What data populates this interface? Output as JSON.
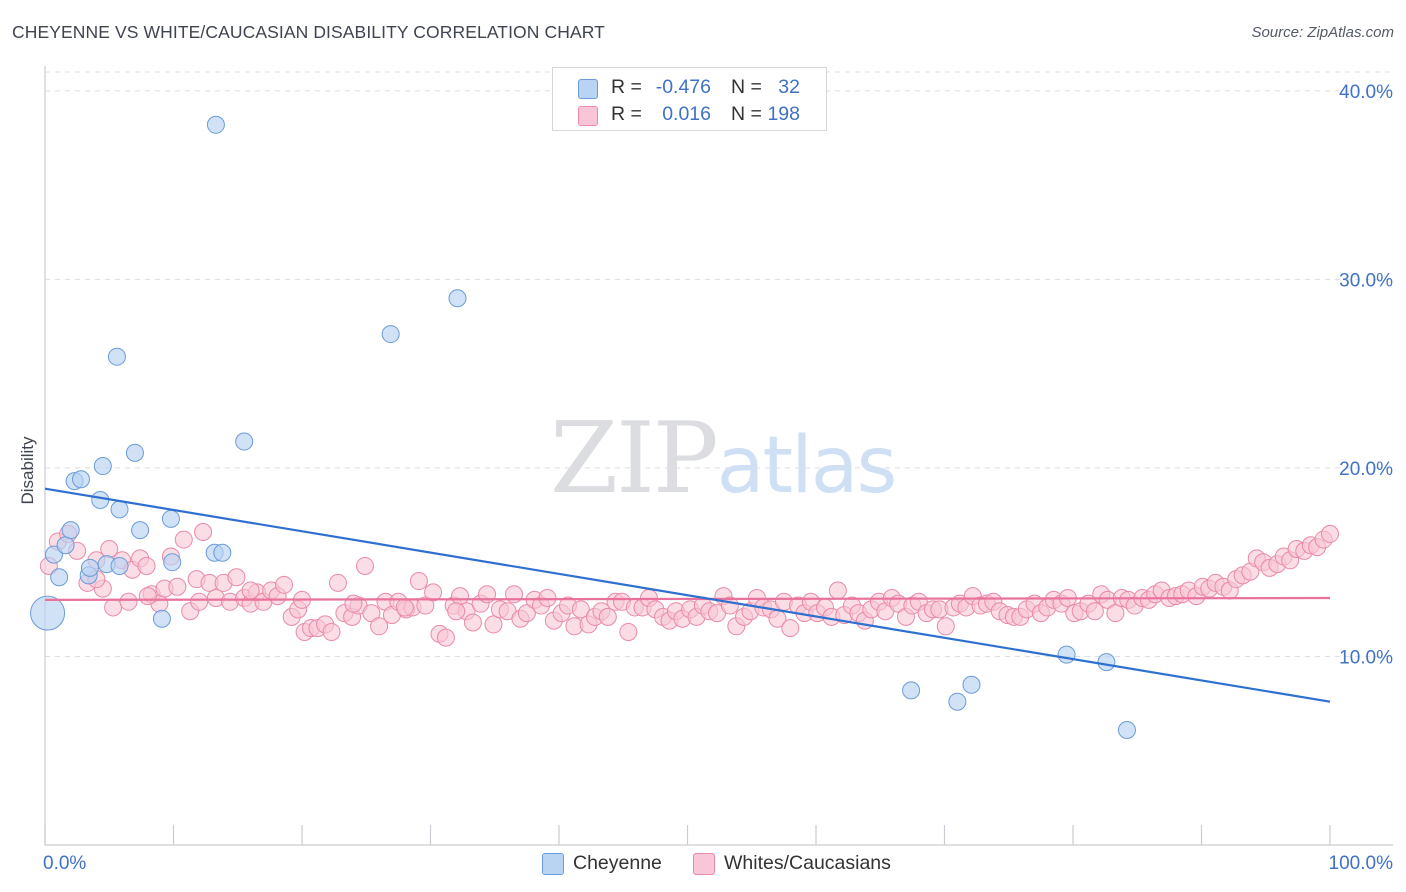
{
  "title": "CHEYENNE VS WHITE/CAUCASIAN DISABILITY CORRELATION CHART",
  "source": "Source: ZipAtlas.com",
  "watermark": {
    "zip": "ZIP",
    "atlas": "atlas"
  },
  "legend": {
    "series1": {
      "r_label": "R =",
      "r_value": "-0.476",
      "n_label": "N =",
      "n_value": "32"
    },
    "series2": {
      "r_label": "R =",
      "r_value": "0.016",
      "n_label": "N =",
      "n_value": "198"
    }
  },
  "bottom_legend": {
    "series1": "Cheyenne",
    "series2": "Whites/Caucasians"
  },
  "colors": {
    "blue_fill": "#b9d3f2",
    "blue_stroke": "#6b9bd8",
    "blue_line": "#2f6fd0",
    "pink_fill": "#f8c6d6",
    "pink_stroke": "#e98aa8",
    "pink_line": "#e8729b",
    "grid": "#dcdee3",
    "axis_text": "#3f72c6"
  },
  "chart_data": {
    "type": "scatter",
    "title": "CHEYENNE VS WHITE/CAUCASIAN DISABILITY CORRELATION CHART",
    "xlabel": "",
    "ylabel": "Disability",
    "xlim": [
      0,
      100
    ],
    "ylim": [
      0,
      41
    ],
    "x_tick_labels": [
      "0.0%",
      "100.0%"
    ],
    "y_ticks": [
      10,
      20,
      30,
      40
    ],
    "y_tick_labels": [
      "10.0%",
      "20.0%",
      "30.0%",
      "40.0%"
    ],
    "grid": true,
    "series": [
      {
        "name": "Cheyenne",
        "color": "#6b9bd8",
        "r": -0.476,
        "n": 32,
        "trend": {
          "x": [
            0,
            100
          ],
          "y": [
            18.9,
            7.6
          ]
        },
        "points": [
          [
            0.2,
            12.3
          ],
          [
            0.7,
            15.4
          ],
          [
            1.1,
            14.2
          ],
          [
            1.6,
            15.9
          ],
          [
            2.0,
            16.7
          ],
          [
            2.3,
            19.3
          ],
          [
            2.8,
            19.4
          ],
          [
            3.4,
            14.3
          ],
          [
            3.5,
            14.7
          ],
          [
            4.3,
            18.3
          ],
          [
            4.5,
            20.1
          ],
          [
            4.8,
            14.9
          ],
          [
            5.6,
            25.9
          ],
          [
            5.8,
            17.8
          ],
          [
            5.8,
            14.8
          ],
          [
            7.0,
            20.8
          ],
          [
            7.4,
            16.7
          ],
          [
            9.1,
            12.0
          ],
          [
            9.8,
            17.3
          ],
          [
            9.9,
            15.0
          ],
          [
            13.2,
            15.5
          ],
          [
            13.8,
            15.5
          ],
          [
            13.3,
            38.2
          ],
          [
            15.5,
            21.4
          ],
          [
            26.9,
            27.1
          ],
          [
            32.1,
            29.0
          ],
          [
            67.4,
            8.2
          ],
          [
            71.0,
            7.6
          ],
          [
            72.1,
            8.5
          ],
          [
            79.5,
            10.1
          ],
          [
            82.6,
            9.7
          ],
          [
            84.2,
            6.1
          ]
        ]
      },
      {
        "name": "Whites/Caucasians",
        "color": "#e98aa8",
        "r": 0.016,
        "n": 198,
        "trend": {
          "x": [
            0,
            100
          ],
          "y": [
            13.0,
            13.1
          ]
        },
        "points": [
          [
            0.3,
            14.8
          ],
          [
            1.0,
            16.1
          ],
          [
            1.8,
            16.5
          ],
          [
            2.5,
            15.6
          ],
          [
            3.3,
            13.9
          ],
          [
            4.0,
            15.1
          ],
          [
            4.5,
            13.6
          ],
          [
            5.0,
            15.7
          ],
          [
            5.3,
            12.6
          ],
          [
            6.0,
            15.1
          ],
          [
            6.5,
            12.9
          ],
          [
            6.8,
            14.6
          ],
          [
            7.4,
            15.2
          ],
          [
            7.9,
            14.8
          ],
          [
            8.3,
            13.3
          ],
          [
            8.9,
            12.8
          ],
          [
            9.3,
            13.6
          ],
          [
            9.8,
            15.3
          ],
          [
            10.3,
            13.7
          ],
          [
            10.8,
            16.2
          ],
          [
            11.3,
            12.4
          ],
          [
            11.8,
            14.1
          ],
          [
            12.3,
            16.6
          ],
          [
            12.8,
            13.9
          ],
          [
            13.3,
            13.1
          ],
          [
            13.9,
            13.9
          ],
          [
            14.4,
            12.9
          ],
          [
            14.9,
            14.2
          ],
          [
            15.5,
            13.1
          ],
          [
            16.0,
            12.8
          ],
          [
            16.5,
            13.4
          ],
          [
            17.0,
            12.9
          ],
          [
            17.6,
            13.5
          ],
          [
            18.1,
            13.2
          ],
          [
            18.6,
            13.8
          ],
          [
            19.2,
            12.1
          ],
          [
            19.7,
            12.5
          ],
          [
            20.2,
            11.3
          ],
          [
            20.7,
            11.5
          ],
          [
            21.2,
            11.5
          ],
          [
            21.8,
            11.7
          ],
          [
            22.3,
            11.3
          ],
          [
            22.8,
            13.9
          ],
          [
            23.3,
            12.3
          ],
          [
            23.9,
            12.1
          ],
          [
            24.4,
            12.7
          ],
          [
            24.9,
            14.8
          ],
          [
            25.4,
            12.3
          ],
          [
            26.0,
            11.6
          ],
          [
            26.5,
            12.9
          ],
          [
            27.0,
            12.2
          ],
          [
            27.5,
            12.9
          ],
          [
            28.1,
            12.5
          ],
          [
            28.6,
            12.6
          ],
          [
            29.1,
            14.0
          ],
          [
            29.6,
            12.7
          ],
          [
            30.2,
            13.4
          ],
          [
            30.7,
            11.2
          ],
          [
            31.2,
            11.0
          ],
          [
            31.8,
            12.7
          ],
          [
            32.3,
            13.2
          ],
          [
            32.8,
            12.4
          ],
          [
            33.3,
            11.8
          ],
          [
            33.9,
            12.8
          ],
          [
            34.4,
            13.3
          ],
          [
            34.9,
            11.7
          ],
          [
            35.4,
            12.5
          ],
          [
            36.0,
            12.4
          ],
          [
            36.5,
            13.3
          ],
          [
            37.0,
            12.0
          ],
          [
            37.5,
            12.3
          ],
          [
            38.1,
            13.0
          ],
          [
            38.6,
            12.7
          ],
          [
            39.1,
            13.1
          ],
          [
            39.6,
            11.9
          ],
          [
            40.2,
            12.3
          ],
          [
            40.7,
            12.7
          ],
          [
            41.2,
            11.6
          ],
          [
            41.7,
            12.5
          ],
          [
            42.3,
            11.7
          ],
          [
            42.8,
            12.1
          ],
          [
            43.3,
            12.4
          ],
          [
            43.8,
            12.1
          ],
          [
            44.4,
            12.9
          ],
          [
            44.9,
            12.9
          ],
          [
            45.4,
            11.3
          ],
          [
            45.9,
            12.6
          ],
          [
            46.5,
            12.6
          ],
          [
            47.0,
            13.1
          ],
          [
            47.5,
            12.5
          ],
          [
            48.1,
            12.1
          ],
          [
            48.6,
            11.9
          ],
          [
            49.1,
            12.4
          ],
          [
            49.6,
            12.0
          ],
          [
            50.2,
            12.5
          ],
          [
            50.7,
            12.1
          ],
          [
            51.2,
            12.7
          ],
          [
            51.7,
            12.4
          ],
          [
            52.3,
            12.3
          ],
          [
            52.8,
            13.2
          ],
          [
            53.3,
            12.7
          ],
          [
            53.8,
            11.6
          ],
          [
            54.4,
            12.1
          ],
          [
            54.9,
            12.4
          ],
          [
            55.4,
            13.1
          ],
          [
            55.9,
            12.6
          ],
          [
            56.5,
            12.5
          ],
          [
            57.0,
            12.0
          ],
          [
            57.5,
            12.9
          ],
          [
            58.0,
            11.5
          ],
          [
            58.6,
            12.7
          ],
          [
            59.1,
            12.3
          ],
          [
            59.6,
            12.9
          ],
          [
            60.1,
            12.3
          ],
          [
            60.7,
            12.6
          ],
          [
            61.2,
            12.1
          ],
          [
            61.7,
            13.5
          ],
          [
            62.2,
            12.2
          ],
          [
            62.8,
            12.7
          ],
          [
            63.3,
            12.3
          ],
          [
            63.8,
            11.9
          ],
          [
            64.3,
            12.5
          ],
          [
            64.9,
            12.9
          ],
          [
            65.4,
            12.4
          ],
          [
            65.9,
            13.1
          ],
          [
            66.4,
            12.8
          ],
          [
            67.0,
            12.1
          ],
          [
            67.5,
            12.7
          ],
          [
            68.0,
            12.9
          ],
          [
            68.6,
            12.3
          ],
          [
            69.1,
            12.5
          ],
          [
            69.6,
            12.5
          ],
          [
            70.1,
            11.6
          ],
          [
            70.7,
            12.6
          ],
          [
            71.2,
            12.8
          ],
          [
            71.7,
            12.6
          ],
          [
            72.2,
            13.2
          ],
          [
            72.8,
            12.7
          ],
          [
            73.3,
            12.8
          ],
          [
            73.8,
            12.9
          ],
          [
            74.3,
            12.4
          ],
          [
            74.9,
            12.2
          ],
          [
            75.4,
            12.1
          ],
          [
            75.9,
            12.1
          ],
          [
            76.4,
            12.5
          ],
          [
            77.0,
            12.8
          ],
          [
            77.5,
            12.3
          ],
          [
            78.0,
            12.6
          ],
          [
            78.5,
            13.0
          ],
          [
            79.1,
            12.8
          ],
          [
            79.6,
            13.1
          ],
          [
            80.1,
            12.3
          ],
          [
            80.6,
            12.4
          ],
          [
            81.2,
            12.8
          ],
          [
            81.7,
            12.4
          ],
          [
            82.2,
            13.3
          ],
          [
            82.7,
            13.0
          ],
          [
            83.3,
            12.3
          ],
          [
            83.8,
            13.1
          ],
          [
            84.3,
            13.0
          ],
          [
            84.8,
            12.7
          ],
          [
            85.4,
            13.1
          ],
          [
            85.9,
            13.0
          ],
          [
            86.4,
            13.3
          ],
          [
            86.9,
            13.5
          ],
          [
            87.5,
            13.1
          ],
          [
            88.0,
            13.2
          ],
          [
            88.5,
            13.3
          ],
          [
            89.0,
            13.5
          ],
          [
            89.6,
            13.2
          ],
          [
            90.1,
            13.7
          ],
          [
            90.6,
            13.6
          ],
          [
            91.1,
            13.9
          ],
          [
            91.7,
            13.7
          ],
          [
            92.2,
            13.5
          ],
          [
            92.7,
            14.1
          ],
          [
            93.2,
            14.3
          ],
          [
            93.8,
            14.5
          ],
          [
            94.3,
            15.2
          ],
          [
            94.8,
            15.0
          ],
          [
            95.3,
            14.7
          ],
          [
            95.9,
            14.9
          ],
          [
            96.4,
            15.3
          ],
          [
            96.9,
            15.1
          ],
          [
            97.4,
            15.7
          ],
          [
            98.0,
            15.6
          ],
          [
            98.5,
            15.9
          ],
          [
            99.0,
            15.8
          ],
          [
            99.5,
            16.2
          ],
          [
            100.0,
            16.5
          ],
          [
            4.0,
            14.1
          ],
          [
            8.0,
            13.2
          ],
          [
            12.0,
            12.9
          ],
          [
            16.0,
            13.5
          ],
          [
            20.0,
            13.0
          ],
          [
            24.0,
            12.8
          ],
          [
            28.0,
            12.6
          ],
          [
            32.0,
            12.4
          ]
        ]
      }
    ]
  }
}
